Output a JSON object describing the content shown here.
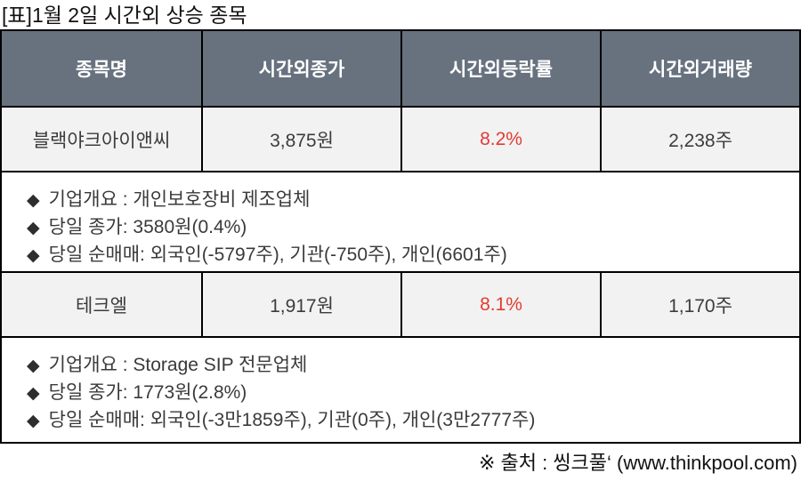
{
  "title": "[표]1월 2일 시간외 상승 종목",
  "bullet": "◆",
  "table": {
    "headers": [
      "종목명",
      "시간외종가",
      "시간외등락률",
      "시간외거래량"
    ]
  },
  "stocks": [
    {
      "name": "블랙야크아이앤씨",
      "price": "3,875원",
      "change": "8.2%",
      "volume": "2,238주",
      "info": [
        "기업개요 : 개인보호장비 제조업체",
        "당일 종가: 3580원(0.4%)",
        "당일 순매매: 외국인(-5797주), 기관(-750주), 개인(6601주)"
      ]
    },
    {
      "name": "테크엘",
      "price": "1,917원",
      "change": "8.1%",
      "volume": "1,170주",
      "info": [
        "기업개요 : Storage SIP 전문업체",
        "당일 종가: 1773원(2.8%)",
        "당일 순매매: 외국인(-3만1859주), 기관(0주), 개인(3만2777주)"
      ]
    }
  ],
  "footer": "※ 출처 : 씽크풀‘ (www.thinkpool.com)",
  "colors": {
    "header_bg": "#68727f",
    "header_text": "#ffffff",
    "row_bg": "#f2f2f2",
    "cell_text": "#3c3c3c",
    "change_red": "#e23b33",
    "info_text": "#3a3a3a",
    "border": "#000000",
    "title_text": "#111111"
  }
}
